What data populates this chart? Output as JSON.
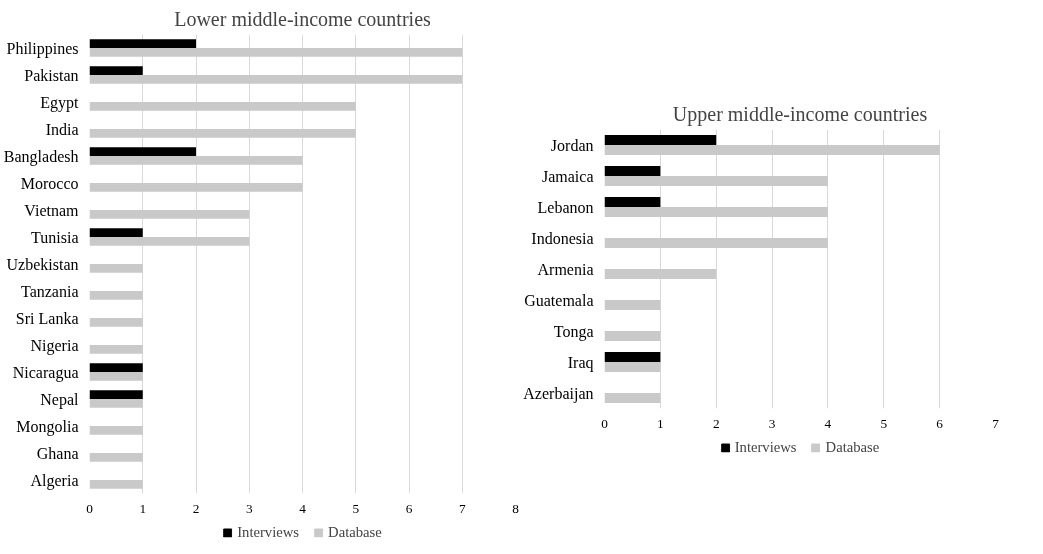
{
  "chart_data": [
    {
      "type": "bar",
      "orientation": "horizontal",
      "title": "Lower middle-income countries",
      "categories": [
        "Philippines",
        "Pakistan",
        "Egypt",
        "India",
        "Bangladesh",
        "Morocco",
        "Vietnam",
        "Tunisia",
        "Uzbekistan",
        "Tanzania",
        "Sri Lanka",
        "Nigeria",
        "Nicaragua",
        "Nepal",
        "Mongolia",
        "Ghana",
        "Algeria"
      ],
      "series": [
        {
          "name": "Interviews",
          "color": "#000000",
          "values": [
            2,
            1,
            null,
            null,
            2,
            null,
            null,
            1,
            null,
            null,
            null,
            null,
            1,
            1,
            null,
            null,
            null
          ]
        },
        {
          "name": "Database",
          "color": "#c9c9c9",
          "values": [
            7,
            7,
            5,
            5,
            4,
            4,
            3,
            3,
            1,
            1,
            1,
            1,
            1,
            1,
            1,
            1,
            1
          ]
        }
      ],
      "xlim": [
        0,
        8
      ],
      "xticks": [
        0,
        1,
        2,
        3,
        4,
        5,
        6,
        7,
        8
      ],
      "grid": "x",
      "legend": "bottom"
    },
    {
      "type": "bar",
      "orientation": "horizontal",
      "title": "Upper middle-income countries",
      "categories": [
        "Jordan",
        "Jamaica",
        "Lebanon",
        "Indonesia",
        "Armenia",
        "Guatemala",
        "Tonga",
        "Iraq",
        "Azerbaijan"
      ],
      "series": [
        {
          "name": "Interviews",
          "color": "#000000",
          "values": [
            2,
            1,
            1,
            null,
            null,
            null,
            null,
            1,
            null
          ]
        },
        {
          "name": "Database",
          "color": "#c9c9c9",
          "values": [
            6,
            4,
            4,
            4,
            2,
            1,
            1,
            1,
            1
          ]
        }
      ],
      "xlim": [
        0,
        7
      ],
      "xticks": [
        0,
        1,
        2,
        3,
        4,
        5,
        6,
        7
      ],
      "grid": "x",
      "legend": "bottom"
    }
  ]
}
